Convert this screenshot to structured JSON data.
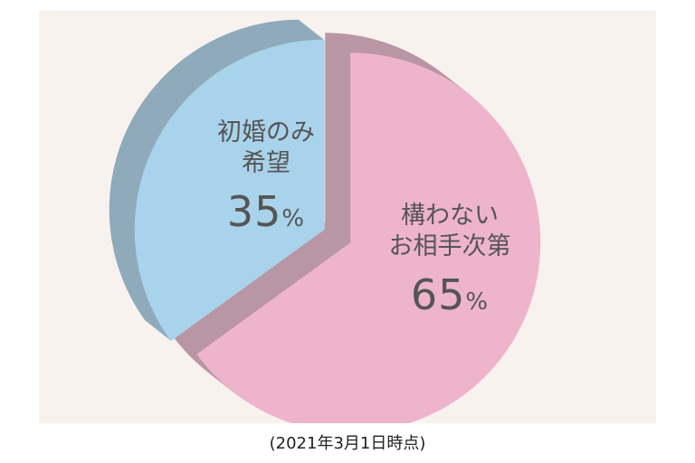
{
  "chart_data": {
    "type": "pie",
    "title": "",
    "slices": [
      {
        "label_lines": [
          "構わない",
          "お相手次第"
        ],
        "value": 65,
        "display": "65",
        "unit": "%",
        "color": "#eeb4cb",
        "side_color": "#b996a3"
      },
      {
        "label_lines": [
          "初婚のみ",
          "希望"
        ],
        "value": 35,
        "display": "35",
        "unit": "%",
        "color": "#a9d3ea",
        "side_color": "#8eaabb"
      }
    ],
    "start": "top",
    "direction": "clockwise",
    "exploded": true,
    "style": "3d"
  },
  "footnote": "(2021年3月1日時点)",
  "colors": {
    "panel_background": "#f8f2ef",
    "text": "#555555"
  }
}
